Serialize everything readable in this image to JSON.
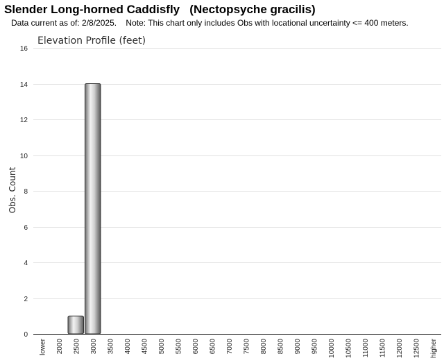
{
  "header": {
    "title": "Slender Long-horned Caddisfly   (Nectopsyche gracilis)",
    "subtitle": "Data current as of: 2/8/2025.    Note: This chart only includes Obs with locational uncertainty <= 400 meters."
  },
  "chart_data": {
    "type": "bar",
    "title": "Elevation Profile (feet)",
    "xlabel": "",
    "ylabel": "Obs. Count",
    "ylim": [
      0,
      16
    ],
    "yticks": [
      0,
      2,
      4,
      6,
      8,
      10,
      12,
      14,
      16
    ],
    "grid": true,
    "categories": [
      "lower",
      "2000",
      "2500",
      "3000",
      "3500",
      "4000",
      "4500",
      "5000",
      "5500",
      "6000",
      "6500",
      "7000",
      "7500",
      "8000",
      "8500",
      "9000",
      "9500",
      "10000",
      "10500",
      "11000",
      "11500",
      "12000",
      "12500",
      "higher"
    ],
    "values": [
      0,
      0,
      1,
      14,
      0,
      0,
      0,
      0,
      0,
      0,
      0,
      0,
      0,
      0,
      0,
      0,
      0,
      0,
      0,
      0,
      0,
      0,
      0,
      0
    ],
    "bar_color": "#a8a8a8"
  }
}
